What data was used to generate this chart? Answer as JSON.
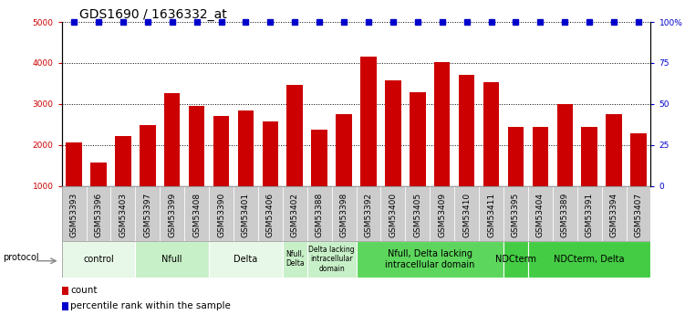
{
  "title": "GDS1690 / 1636332_at",
  "samples": [
    "GSM53393",
    "GSM53396",
    "GSM53403",
    "GSM53397",
    "GSM53399",
    "GSM53408",
    "GSM53390",
    "GSM53401",
    "GSM53406",
    "GSM53402",
    "GSM53388",
    "GSM53398",
    "GSM53392",
    "GSM53400",
    "GSM53405",
    "GSM53409",
    "GSM53410",
    "GSM53411",
    "GSM53395",
    "GSM53404",
    "GSM53389",
    "GSM53391",
    "GSM53394",
    "GSM53407"
  ],
  "counts": [
    2060,
    1560,
    2220,
    2490,
    3270,
    2960,
    2700,
    2840,
    2580,
    3460,
    2380,
    2760,
    4160,
    3580,
    3280,
    4020,
    3720,
    3530,
    2440,
    2440,
    2990,
    2440,
    2760,
    2290
  ],
  "percentile": [
    100,
    100,
    100,
    100,
    100,
    100,
    100,
    100,
    100,
    100,
    100,
    100,
    100,
    100,
    100,
    100,
    100,
    100,
    100,
    100,
    100,
    100,
    100,
    100
  ],
  "bar_color": "#cc0000",
  "dot_color": "#0000cc",
  "ylim_left": [
    1000,
    5000
  ],
  "ylim_right": [
    0,
    100
  ],
  "yticks_left": [
    1000,
    2000,
    3000,
    4000,
    5000
  ],
  "ytick_labels_left": [
    "1000",
    "2000",
    "3000",
    "4000",
    "5000"
  ],
  "yticks_right": [
    0,
    25,
    50,
    75,
    100
  ],
  "ytick_labels_right": [
    "0",
    "25",
    "50",
    "75",
    "100%"
  ],
  "grid_color": "black",
  "protocols": [
    {
      "label": "control",
      "start": 0,
      "end": 3,
      "color": "#e8f8e8"
    },
    {
      "label": "Nfull",
      "start": 3,
      "end": 6,
      "color": "#c8f0c8"
    },
    {
      "label": "Delta",
      "start": 6,
      "end": 9,
      "color": "#e8f8e8"
    },
    {
      "label": "Nfull,\nDelta",
      "start": 9,
      "end": 10,
      "color": "#c8f0c8"
    },
    {
      "label": "Delta lacking\nintracellular\ndomain",
      "start": 10,
      "end": 12,
      "color": "#c8f0c8"
    },
    {
      "label": "Nfull, Delta lacking\nintracellular domain",
      "start": 12,
      "end": 18,
      "color": "#5cd65c"
    },
    {
      "label": "NDCterm",
      "start": 18,
      "end": 19,
      "color": "#44cc44"
    },
    {
      "label": "NDCterm, Delta",
      "start": 19,
      "end": 24,
      "color": "#44cc44"
    }
  ],
  "protocol_label": "protocol",
  "legend_count": "count",
  "legend_percentile": "percentile rank within the sample",
  "bar_width": 0.65,
  "tick_fontsize": 6.5,
  "title_fontsize": 10,
  "label_fontsize": 8,
  "sample_box_color": "#cccccc",
  "dot_size": 4
}
